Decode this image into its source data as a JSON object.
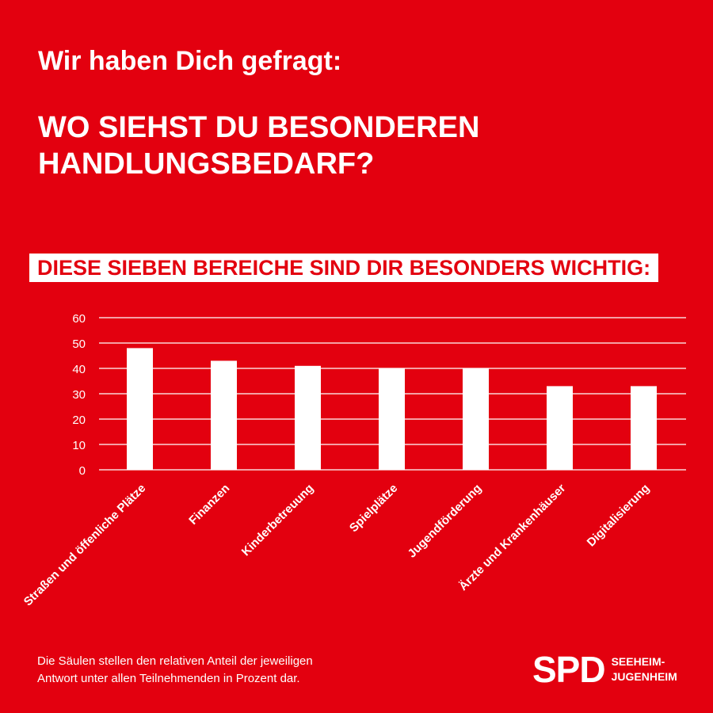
{
  "header": {
    "intro": "Wir haben Dich gefragt:",
    "headline_line1": "WO SIEHST DU BESONDEREN",
    "headline_line2": "HANDLUNGSBEDARF?"
  },
  "banner": "DIESE SIEBEN BEREICHE SIND DIR BESONDERS WICHTIG:",
  "chart_data": {
    "type": "bar",
    "categories": [
      "Straßen und öffenliche Plätze",
      "Finanzen",
      "Kinderbetreuung",
      "Spielplätze",
      "Jugendförderung",
      "Ärzte und Krankenhäuser",
      "Digitalisierung"
    ],
    "values": [
      48,
      43,
      41,
      40,
      40,
      33,
      33
    ],
    "ylim": [
      0,
      60
    ],
    "yticks": [
      0,
      10,
      20,
      30,
      40,
      50,
      60
    ],
    "grid": true,
    "bar_color": "#ffffff",
    "grid_color": "#ffffff"
  },
  "footnote": {
    "line1": "Die Säulen stellen den relativen  Anteil der jeweiligen",
    "line2": "Antwort unter allen Teilnehmenden in Prozent dar."
  },
  "logo": {
    "mark": "SPD",
    "line1": "SEEHEIM-",
    "line2": "JUGENHEIM"
  },
  "colors": {
    "background": "#e3000f",
    "text": "#ffffff"
  }
}
